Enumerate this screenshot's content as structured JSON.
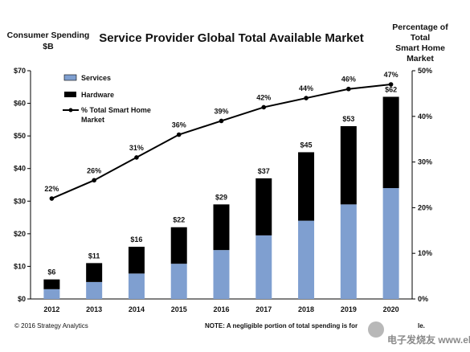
{
  "chart_data": {
    "type": "bar",
    "title": "Service Provider Global Total Available Market",
    "y_left_title": [
      "Consumer Spending",
      "$B"
    ],
    "y_right_title": [
      "Percentage of",
      "Total",
      "Smart Home",
      "Market"
    ],
    "categories": [
      "2012",
      "2013",
      "2014",
      "2015",
      "2016",
      "2017",
      "2018",
      "2019",
      "2020"
    ],
    "stacked": true,
    "series": [
      {
        "name": "Services",
        "type": "bar",
        "color": "#7f9fd0",
        "values": [
          3,
          5.2,
          7.8,
          10.8,
          15,
          19.5,
          24,
          29,
          34
        ]
      },
      {
        "name": "Hardware",
        "type": "bar",
        "color": "#000000",
        "values": [
          3,
          5.8,
          8.2,
          11.2,
          14,
          17.5,
          21,
          24,
          28
        ]
      },
      {
        "name": "% Total Smart Home Market",
        "type": "line",
        "axis": "right",
        "color": "#000000",
        "values": [
          22,
          26,
          31,
          36,
          39,
          42,
          44,
          46,
          47
        ]
      }
    ],
    "total_labels": [
      "$6",
      "$11",
      "$16",
      "$22",
      "$29",
      "$37",
      "$45",
      "$53",
      "$62"
    ],
    "pct_labels": [
      "22%",
      "26%",
      "31%",
      "36%",
      "39%",
      "42%",
      "44%",
      "46%",
      "47%"
    ],
    "y_left": {
      "min": 0,
      "max": 70,
      "step": 10,
      "ticks": [
        "$0",
        "$10",
        "$20",
        "$30",
        "$40",
        "$50",
        "$60",
        "$70"
      ]
    },
    "y_right": {
      "min": 0,
      "max": 50,
      "step": 10,
      "ticks": [
        "0%",
        "10%",
        "20%",
        "30%",
        "40%",
        "50%"
      ]
    },
    "legend_position": "top-left",
    "grid": false
  },
  "footer": {
    "copyright": "© 2016 Strategy Analytics",
    "note": "NOTE: A negligible portion of total spending is for",
    "note_tail": "le."
  },
  "watermark": "电子发烧友 www.elecfans.com"
}
